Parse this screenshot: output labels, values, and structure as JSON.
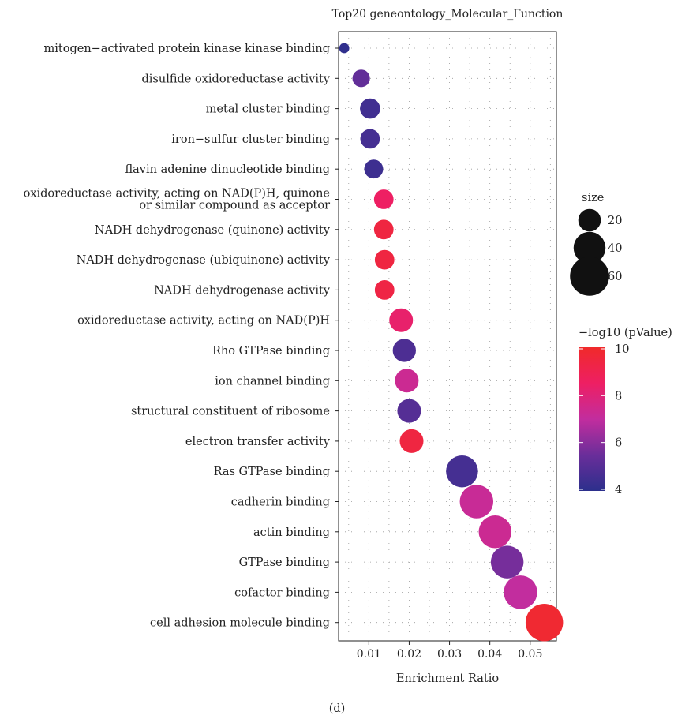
{
  "chart_data": {
    "type": "scatter",
    "title": "Top20 geneontology_Molecular_Function",
    "xlabel": "Enrichment Ratio",
    "ylabel": "",
    "xlim": [
      0.0025,
      0.0565
    ],
    "xticks": [
      0.01,
      0.02,
      0.03,
      0.04,
      0.05
    ],
    "xtick_labels": [
      "0.01",
      "0.02",
      "0.03",
      "0.04",
      "0.05"
    ],
    "grid": "dotted",
    "categories": [
      "mitogen−activated protein kinase kinase binding",
      "disulfide oxidoreductase activity",
      "metal cluster binding",
      "iron−sulfur cluster binding",
      "flavin adenine dinucleotide binding",
      "oxidoreductase activity, acting on NAD(P)H, quinone\nor similar compound as acceptor",
      "NADH dehydrogenase (quinone) activity",
      "NADH dehydrogenase (ubiquinone) activity",
      "NADH dehydrogenase activity",
      "oxidoreductase activity, acting on NAD(P)H",
      "Rho GTPase binding",
      "ion channel binding",
      "structural constituent of ribosome",
      "electron transfer activity",
      "Ras GTPase binding",
      "cadherin binding",
      "actin binding",
      "GTPase binding",
      "cofactor binding",
      "cell adhesion molecule binding"
    ],
    "points": [
      {
        "x": 0.0039,
        "size": 4,
        "neglog10p": 4.1
      },
      {
        "x": 0.0081,
        "size": 12,
        "neglog10p": 5.3
      },
      {
        "x": 0.0103,
        "size": 16,
        "neglog10p": 4.5
      },
      {
        "x": 0.0103,
        "size": 15,
        "neglog10p": 4.6
      },
      {
        "x": 0.0112,
        "size": 14,
        "neglog10p": 4.4
      },
      {
        "x": 0.0137,
        "size": 15,
        "neglog10p": 8.5
      },
      {
        "x": 0.0137,
        "size": 15,
        "neglog10p": 9.4
      },
      {
        "x": 0.0139,
        "size": 15,
        "neglog10p": 9.4
      },
      {
        "x": 0.0139,
        "size": 15,
        "neglog10p": 9.3
      },
      {
        "x": 0.018,
        "size": 22,
        "neglog10p": 8.3
      },
      {
        "x": 0.0188,
        "size": 21,
        "neglog10p": 4.8
      },
      {
        "x": 0.0194,
        "size": 22,
        "neglog10p": 7.3
      },
      {
        "x": 0.02,
        "size": 22,
        "neglog10p": 5.0
      },
      {
        "x": 0.0206,
        "size": 22,
        "neglog10p": 9.4
      },
      {
        "x": 0.0331,
        "size": 40,
        "neglog10p": 4.6
      },
      {
        "x": 0.0367,
        "size": 44,
        "neglog10p": 7.2
      },
      {
        "x": 0.0413,
        "size": 42,
        "neglog10p": 7.3
      },
      {
        "x": 0.0443,
        "size": 42,
        "neglog10p": 5.7
      },
      {
        "x": 0.0476,
        "size": 44,
        "neglog10p": 7.0
      },
      {
        "x": 0.0535,
        "size": 55,
        "neglog10p": 9.8
      }
    ],
    "size_legend": {
      "title": "size",
      "values": [
        20,
        40,
        60
      ],
      "labels": [
        "20",
        "40",
        "60"
      ]
    },
    "color_legend": {
      "title": "−log10 (pValue)",
      "min": 4,
      "max": 10,
      "ticks": [
        4,
        6,
        8,
        10
      ],
      "tick_labels": [
        "4",
        "6",
        "8",
        "10"
      ],
      "colors": [
        "#2c2f8c",
        "#6a2e9a",
        "#c22d9e",
        "#ee1f63",
        "#f02a2a"
      ]
    }
  },
  "caption": "(d)"
}
